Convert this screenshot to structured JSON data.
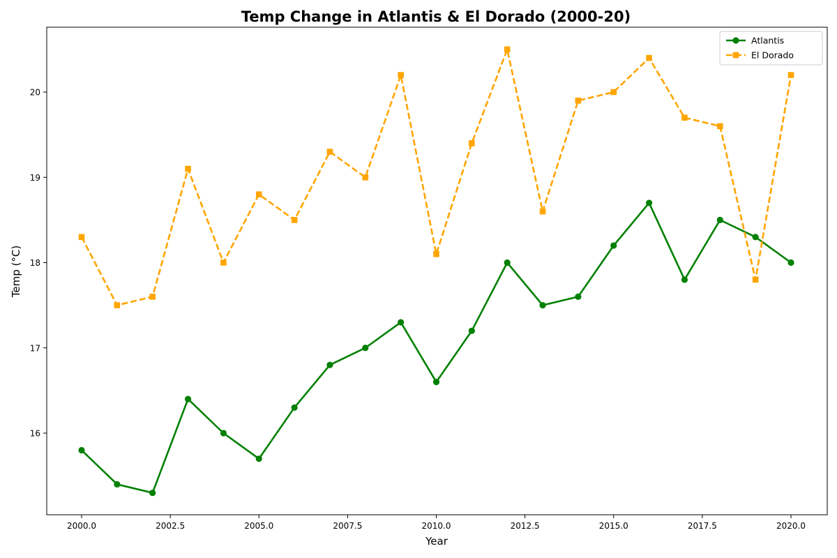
{
  "chart_data": {
    "type": "line",
    "title": "Temp Change in Atlantis & El Dorado (2000-20)",
    "xlabel": "Year",
    "ylabel": "Temp (°C)",
    "xlim": [
      1990.0,
      2030.0
    ],
    "ylim": [
      14.5,
      20.8
    ],
    "x_ticks": [
      2000.0,
      2002.5,
      2005.0,
      2007.5,
      2010.0,
      2012.5,
      2015.0,
      2017.5,
      2020.0
    ],
    "x_tick_labels": [
      "2000.0",
      "2002.5",
      "2005.0",
      "2007.5",
      "2010.0",
      "2012.5",
      "2015.0",
      "2017.5",
      "2020.0"
    ],
    "y_ticks": [
      16,
      17,
      18,
      19,
      20
    ],
    "y_tick_labels": [
      "16",
      "17",
      "18",
      "19",
      "20"
    ],
    "grid": false,
    "legend_position": "top-right",
    "x": [
      2000,
      2001,
      2002,
      2003,
      2004,
      2005,
      2006,
      2007,
      2008,
      2009,
      2010,
      2011,
      2012,
      2013,
      2014,
      2015,
      2016,
      2017,
      2018,
      2019,
      2020
    ],
    "series": [
      {
        "name": "Atlantis",
        "color": "#008000",
        "line_style": "solid",
        "marker": "circle",
        "values": [
          15.8,
          15.4,
          15.3,
          16.4,
          16.0,
          15.7,
          16.3,
          16.8,
          17.0,
          17.3,
          16.6,
          17.2,
          18.0,
          17.5,
          17.6,
          18.2,
          18.7,
          17.8,
          18.5,
          18.3,
          18.0
        ]
      },
      {
        "name": "El Dorado",
        "color": "#FFA500",
        "line_style": "dashed",
        "marker": "square",
        "values": [
          18.3,
          17.5,
          17.6,
          19.1,
          18.0,
          18.8,
          18.5,
          19.3,
          19.0,
          20.2,
          18.1,
          19.4,
          20.5,
          18.6,
          19.9,
          20.0,
          20.4,
          19.7,
          19.6,
          17.8,
          20.2
        ]
      }
    ]
  }
}
